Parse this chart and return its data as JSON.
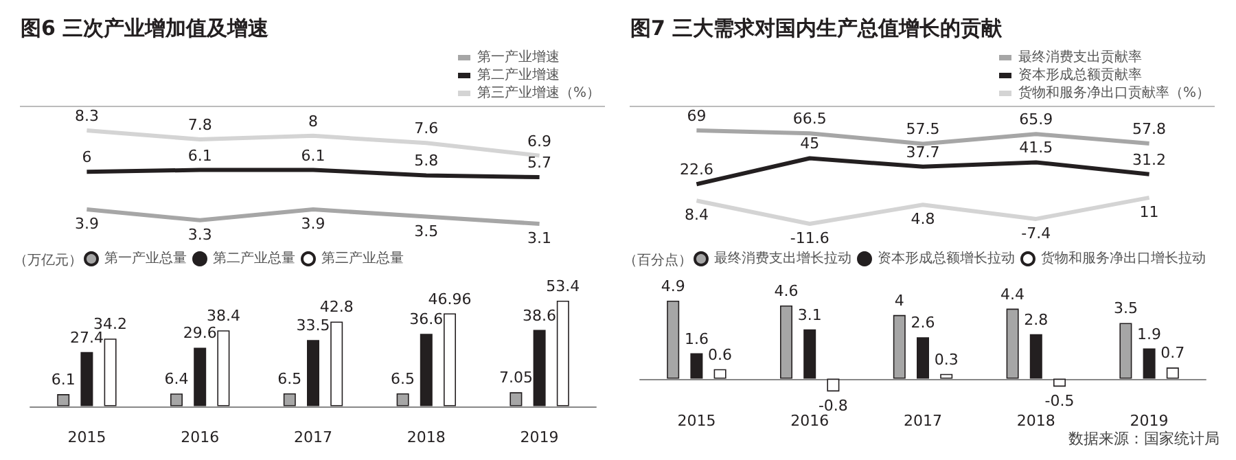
{
  "chart_data": [
    {
      "type": "line",
      "title": "图6 三次产业增加值及增速",
      "categories": [
        "2015",
        "2016",
        "2017",
        "2018",
        "2019"
      ],
      "legend": "top right",
      "data_labels": true,
      "tick_labels": false,
      "series": [
        {
          "name": "第一产业增速",
          "color": "#a6a6a6",
          "values": [
            3.9,
            3.3,
            3.9,
            3.5,
            3.1
          ]
        },
        {
          "name": "第二产业增速",
          "color": "#231f20",
          "values": [
            6,
            6.1,
            6.1,
            5.8,
            5.7
          ]
        },
        {
          "name": "第三产业增速（%）",
          "color": "#d4d4d4",
          "values": [
            8.3,
            7.8,
            8,
            7.6,
            6.9
          ]
        }
      ]
    },
    {
      "type": "bar",
      "ylabel": "（万亿元）",
      "categories": [
        "2015",
        "2016",
        "2017",
        "2018",
        "2019"
      ],
      "legend": "top left",
      "data_labels": true,
      "series": [
        {
          "name": "第一产业总量",
          "color": "#a6a6a6",
          "values": [
            6.1,
            6.4,
            6.5,
            6.5,
            7.05
          ]
        },
        {
          "name": "第二产业总量",
          "color": "#231f20",
          "values": [
            27.4,
            29.6,
            33.5,
            36.6,
            38.6
          ]
        },
        {
          "name": "第三产业总量",
          "color": "#ffffff",
          "values": [
            34.2,
            38.4,
            42.8,
            46.96,
            53.4
          ]
        }
      ]
    },
    {
      "type": "line",
      "title": "图7 三大需求对国内生产总值增长的贡献",
      "categories": [
        "2015",
        "2016",
        "2017",
        "2018",
        "2019"
      ],
      "legend": "top right",
      "data_labels": true,
      "tick_labels": false,
      "series": [
        {
          "name": "最终消费支出贡献率",
          "color": "#a6a6a6",
          "values": [
            69,
            66.5,
            57.5,
            65.9,
            57.8
          ]
        },
        {
          "name": "资本形成总额贡献率",
          "color": "#231f20",
          "values": [
            22.6,
            45,
            37.7,
            41.5,
            31.2
          ]
        },
        {
          "name": "货物和服务净出口贡献率（%）",
          "color": "#d4d4d4",
          "values": [
            8.4,
            -11.6,
            4.8,
            -7.4,
            11
          ]
        }
      ]
    },
    {
      "type": "bar",
      "ylabel": "（百分点）",
      "categories": [
        "2015",
        "2016",
        "2017",
        "2018",
        "2019"
      ],
      "legend": "top left",
      "data_labels": true,
      "annotations": [
        "数据来源：国家统计局"
      ],
      "series": [
        {
          "name": "最终消费支出增长拉动",
          "color": "#a6a6a6",
          "values": [
            4.9,
            4.6,
            4,
            4.4,
            3.5
          ]
        },
        {
          "name": "资本形成总额增长拉动",
          "color": "#231f20",
          "values": [
            1.6,
            3.1,
            2.6,
            2.8,
            1.9
          ]
        },
        {
          "name": "货物和服务净出口增长拉动",
          "color": "#ffffff",
          "values": [
            0.6,
            -0.8,
            0.3,
            -0.5,
            0.7
          ]
        }
      ]
    }
  ]
}
